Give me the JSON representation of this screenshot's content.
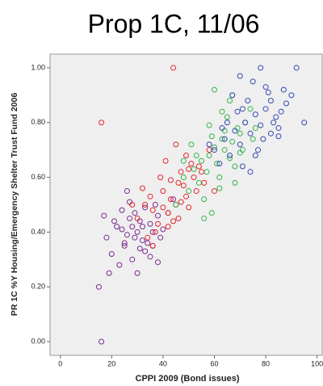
{
  "chart_data": {
    "type": "scatter",
    "title": "Prop 1C, 11/06",
    "x_label": "CPPI 2009 (Bond issues)",
    "y_label": "PR 1C %Y Housing/Emergency Shelter Trust Fund 2006",
    "xlim": [
      -4,
      102
    ],
    "xticks": [
      0,
      20,
      40,
      60,
      80,
      100
    ],
    "ylim": [
      -0.05,
      1.05
    ],
    "yticks": [
      {
        "value": 0,
        "label": "0.00"
      },
      {
        "value": 0.2,
        "label": "0.20"
      },
      {
        "value": 0.4,
        "label": "0.40"
      },
      {
        "value": 0.6,
        "label": "0.60"
      },
      {
        "value": 0.8,
        "label": "0.80"
      },
      {
        "value": 1,
        "label": "1.00"
      }
    ],
    "series": [
      {
        "color": "#7b2a8f",
        "x": [
          18,
          22,
          25,
          27,
          30,
          32,
          35,
          38,
          20,
          24,
          28,
          31,
          34,
          37,
          40,
          26,
          29,
          33,
          21,
          23,
          36,
          39,
          30,
          27,
          25,
          32,
          35,
          17,
          42,
          28,
          31,
          19,
          33,
          26,
          29,
          36,
          24,
          38,
          15,
          44,
          16
        ],
        "values": [
          0.38,
          0.42,
          0.35,
          0.45,
          0.4,
          0.37,
          0.43,
          0.46,
          0.32,
          0.48,
          0.3,
          0.44,
          0.36,
          0.5,
          0.41,
          0.39,
          0.47,
          0.33,
          0.44,
          0.28,
          0.4,
          0.38,
          0.25,
          0.51,
          0.36,
          0.42,
          0.31,
          0.46,
          0.47,
          0.42,
          0.34,
          0.25,
          0.49,
          0.55,
          0.38,
          0.35,
          0.41,
          0.29,
          0.2,
          0.52,
          0.0
        ]
      },
      {
        "color": "#e8242b",
        "x": [
          30,
          33,
          36,
          40,
          43,
          46,
          49,
          52,
          55,
          38,
          42,
          45,
          48,
          51,
          35,
          39,
          44,
          47,
          50,
          53,
          41,
          37,
          46,
          49,
          56,
          58,
          34,
          43,
          32,
          47,
          54,
          40,
          45,
          28,
          60,
          50,
          36,
          42,
          16,
          44
        ],
        "values": [
          0.45,
          0.5,
          0.48,
          0.55,
          0.52,
          0.58,
          0.53,
          0.6,
          0.62,
          0.43,
          0.47,
          0.5,
          0.57,
          0.65,
          0.53,
          0.6,
          0.44,
          0.62,
          0.49,
          0.55,
          0.66,
          0.4,
          0.45,
          0.68,
          0.58,
          0.7,
          0.38,
          0.59,
          0.56,
          0.51,
          0.64,
          0.49,
          0.72,
          0.5,
          0.55,
          0.63,
          0.35,
          0.42,
          0.8,
          1.0
        ]
      },
      {
        "color": "#33b44a",
        "x": [
          48,
          52,
          55,
          58,
          61,
          64,
          67,
          70,
          50,
          54,
          57,
          60,
          63,
          66,
          69,
          72,
          53,
          56,
          59,
          62,
          65,
          68,
          71,
          74,
          51,
          58,
          62,
          66,
          45,
          60,
          64,
          70,
          56,
          68,
          75,
          48,
          63,
          59,
          67,
          76
        ],
        "values": [
          0.6,
          0.63,
          0.66,
          0.68,
          0.65,
          0.7,
          0.73,
          0.76,
          0.55,
          0.58,
          0.62,
          0.71,
          0.74,
          0.67,
          0.78,
          0.8,
          0.68,
          0.52,
          0.75,
          0.6,
          0.82,
          0.64,
          0.7,
          0.85,
          0.72,
          0.79,
          0.56,
          0.88,
          0.5,
          0.92,
          0.77,
          0.69,
          0.45,
          0.58,
          0.74,
          0.66,
          0.84,
          0.47,
          0.9,
          0.78
        ]
      },
      {
        "color": "#3448b5",
        "x": [
          60,
          64,
          68,
          72,
          76,
          80,
          84,
          88,
          62,
          66,
          70,
          74,
          78,
          82,
          86,
          90,
          65,
          69,
          73,
          77,
          81,
          85,
          67,
          71,
          75,
          79,
          83,
          87,
          63,
          70,
          76,
          80,
          92,
          74,
          95,
          58,
          82,
          78,
          71,
          85
        ],
        "values": [
          0.7,
          0.74,
          0.77,
          0.8,
          0.83,
          0.85,
          0.82,
          0.87,
          0.65,
          0.68,
          0.72,
          0.76,
          0.79,
          0.76,
          0.84,
          0.9,
          0.8,
          0.84,
          0.88,
          0.7,
          0.91,
          0.78,
          0.9,
          0.64,
          0.95,
          0.74,
          0.8,
          0.92,
          0.78,
          0.97,
          0.68,
          0.93,
          1.0,
          0.62,
          0.8,
          0.72,
          0.88,
          1.0,
          0.85,
          0.75
        ]
      }
    ]
  }
}
